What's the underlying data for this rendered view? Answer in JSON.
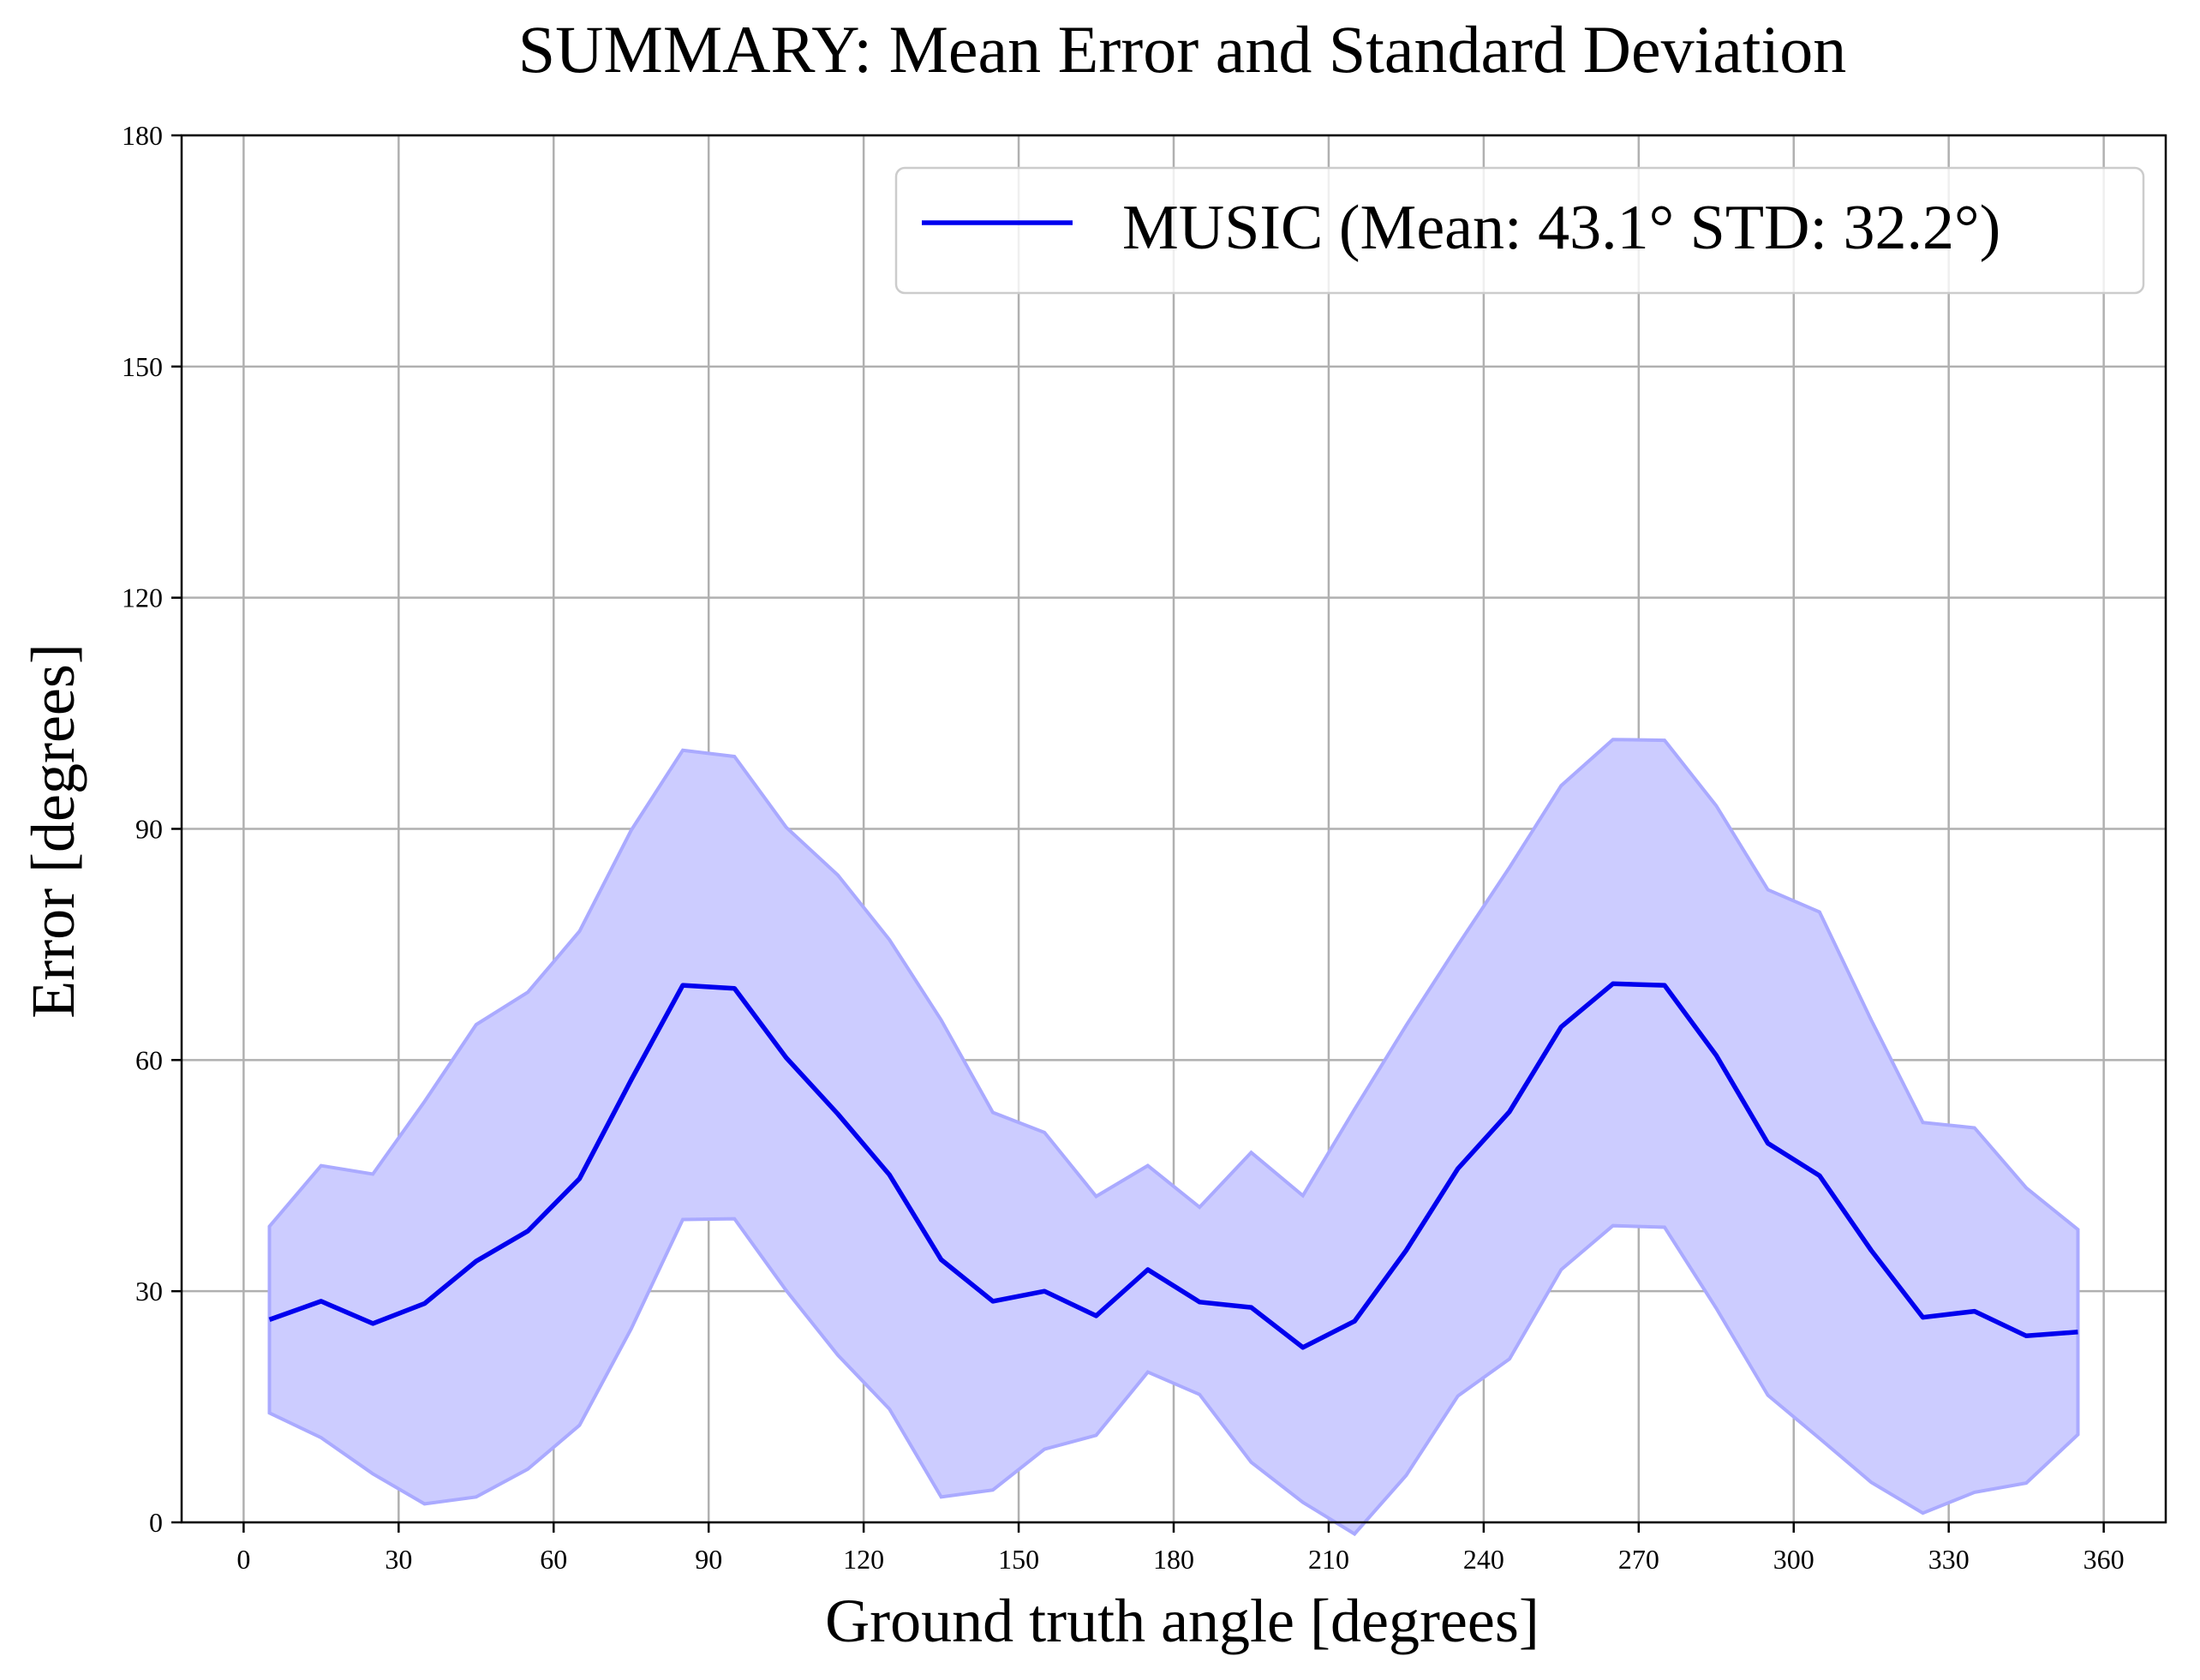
{
  "chart_data": {
    "type": "line",
    "title": "SUMMARY: Mean Error and Standard Deviation",
    "xlabel": "Ground truth angle [degrees]",
    "ylabel": "Error [degrees]",
    "xlim": [
      -12,
      372
    ],
    "ylim": [
      0,
      180
    ],
    "xticks": [
      0,
      30,
      60,
      90,
      120,
      150,
      180,
      210,
      240,
      270,
      300,
      330,
      360
    ],
    "yticks": [
      0,
      30,
      60,
      90,
      120,
      150,
      180
    ],
    "grid": true,
    "legend_position": "top-right",
    "colors": {
      "line": "#0000ee",
      "band": "#ccccff",
      "band_edge": "#aaaaff",
      "grid": "#b0b0b0"
    },
    "x": [
      5,
      15,
      25,
      35,
      45,
      55,
      65,
      75,
      85,
      95,
      105,
      115,
      125,
      135,
      145,
      155,
      165,
      175,
      185,
      195,
      205,
      215,
      225,
      235,
      245,
      255,
      265,
      275,
      285,
      295,
      305,
      315,
      325,
      335,
      345,
      355
    ],
    "series": [
      {
        "name": "MUSIC (Mean: 43.1° STD: 32.2°)",
        "values": [
          26.3,
          28.7,
          25.8,
          28.4,
          33.9,
          37.8,
          44.6,
          57.4,
          69.7,
          69.3,
          60.3,
          53.0,
          45.1,
          34.1,
          28.7,
          30.0,
          26.8,
          32.8,
          28.6,
          27.9,
          22.7,
          26.1,
          35.3,
          45.9,
          53.3,
          64.3,
          69.9,
          69.7,
          60.6,
          49.2,
          45.0,
          35.3,
          26.6,
          27.4,
          24.2,
          24.7
        ],
        "lower": [
          14.2,
          11.0,
          6.3,
          2.4,
          3.3,
          6.9,
          12.6,
          25.1,
          39.3,
          39.4,
          30.1,
          21.7,
          14.7,
          3.3,
          4.2,
          9.5,
          11.3,
          19.5,
          16.6,
          7.8,
          2.6,
          -1.5,
          6.1,
          16.4,
          21.2,
          32.8,
          38.5,
          38.3,
          27.8,
          16.5,
          10.9,
          5.2,
          1.2,
          3.9,
          5.1,
          11.4
        ],
        "upper": [
          38.4,
          46.3,
          45.2,
          54.6,
          64.6,
          68.8,
          76.7,
          89.8,
          100.2,
          99.4,
          90.2,
          84.0,
          75.6,
          65.2,
          53.2,
          50.6,
          42.3,
          46.3,
          40.9,
          48.0,
          42.4,
          53.6,
          64.5,
          74.9,
          85.0,
          95.6,
          101.6,
          101.5,
          93.0,
          82.1,
          79.2,
          65.2,
          51.9,
          51.2,
          43.4,
          38.0
        ]
      }
    ]
  }
}
